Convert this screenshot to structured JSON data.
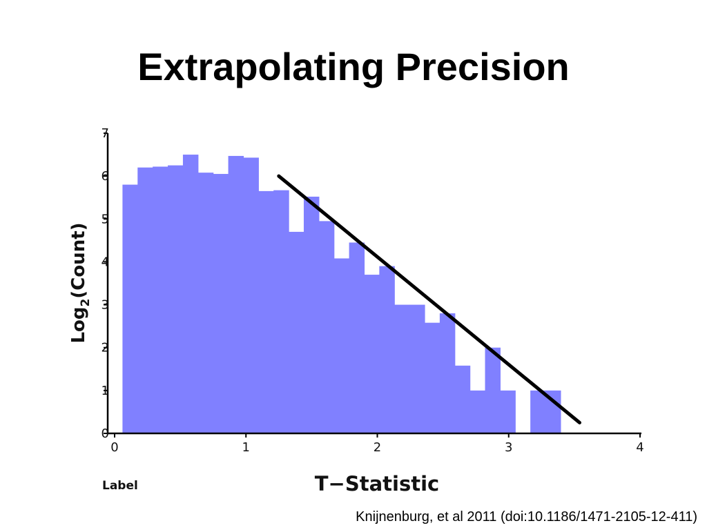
{
  "slide": {
    "title": "Extrapolating Precision",
    "citation": "Knijnenburg, et al 2011 (doi:10.1186/1471-2105-12-411)"
  },
  "chart_data": {
    "type": "bar",
    "title": "",
    "xlabel": "T−Statistic",
    "ylabel_main": "Log",
    "ylabel_sub": "2",
    "ylabel_rest": "(Count)",
    "corner_label": "Label",
    "xlim": [
      0,
      4
    ],
    "ylim": [
      0,
      7
    ],
    "x_ticks": [
      "0",
      "1",
      "2",
      "3",
      "4"
    ],
    "y_ticks": [
      "0",
      "1",
      "2",
      "3",
      "4",
      "5",
      "6",
      "7"
    ],
    "bar_color": "#8080ff",
    "line_color": "#000000",
    "bin_width": 0.115,
    "bins": [
      {
        "x0": 0.06,
        "value": 5.8
      },
      {
        "x0": 0.175,
        "value": 6.2
      },
      {
        "x0": 0.29,
        "value": 6.22
      },
      {
        "x0": 0.405,
        "value": 6.25
      },
      {
        "x0": 0.52,
        "value": 6.5
      },
      {
        "x0": 0.635,
        "value": 6.08
      },
      {
        "x0": 0.75,
        "value": 6.05
      },
      {
        "x0": 0.865,
        "value": 6.47
      },
      {
        "x0": 0.98,
        "value": 6.43
      },
      {
        "x0": 1.095,
        "value": 5.65
      },
      {
        "x0": 1.21,
        "value": 5.67
      },
      {
        "x0": 1.325,
        "value": 4.7
      },
      {
        "x0": 1.44,
        "value": 5.52
      },
      {
        "x0": 1.555,
        "value": 4.95
      },
      {
        "x0": 1.67,
        "value": 4.08
      },
      {
        "x0": 1.785,
        "value": 4.45
      },
      {
        "x0": 1.9,
        "value": 3.7
      },
      {
        "x0": 2.015,
        "value": 3.9
      },
      {
        "x0": 2.13,
        "value": 3.0
      },
      {
        "x0": 2.245,
        "value": 3.0
      },
      {
        "x0": 2.36,
        "value": 2.58
      },
      {
        "x0": 2.475,
        "value": 2.8
      },
      {
        "x0": 2.59,
        "value": 1.58
      },
      {
        "x0": 2.705,
        "value": 1.0
      },
      {
        "x0": 2.82,
        "value": 2.0
      },
      {
        "x0": 2.935,
        "value": 1.0
      },
      {
        "x0": 3.05,
        "value": 0
      },
      {
        "x0": 3.165,
        "value": 1.0
      },
      {
        "x0": 3.28,
        "value": 1.0
      }
    ],
    "fit_line": {
      "x": [
        1.25,
        3.54
      ],
      "y": [
        6.0,
        0.25
      ]
    },
    "grid": false,
    "legend": "none"
  }
}
